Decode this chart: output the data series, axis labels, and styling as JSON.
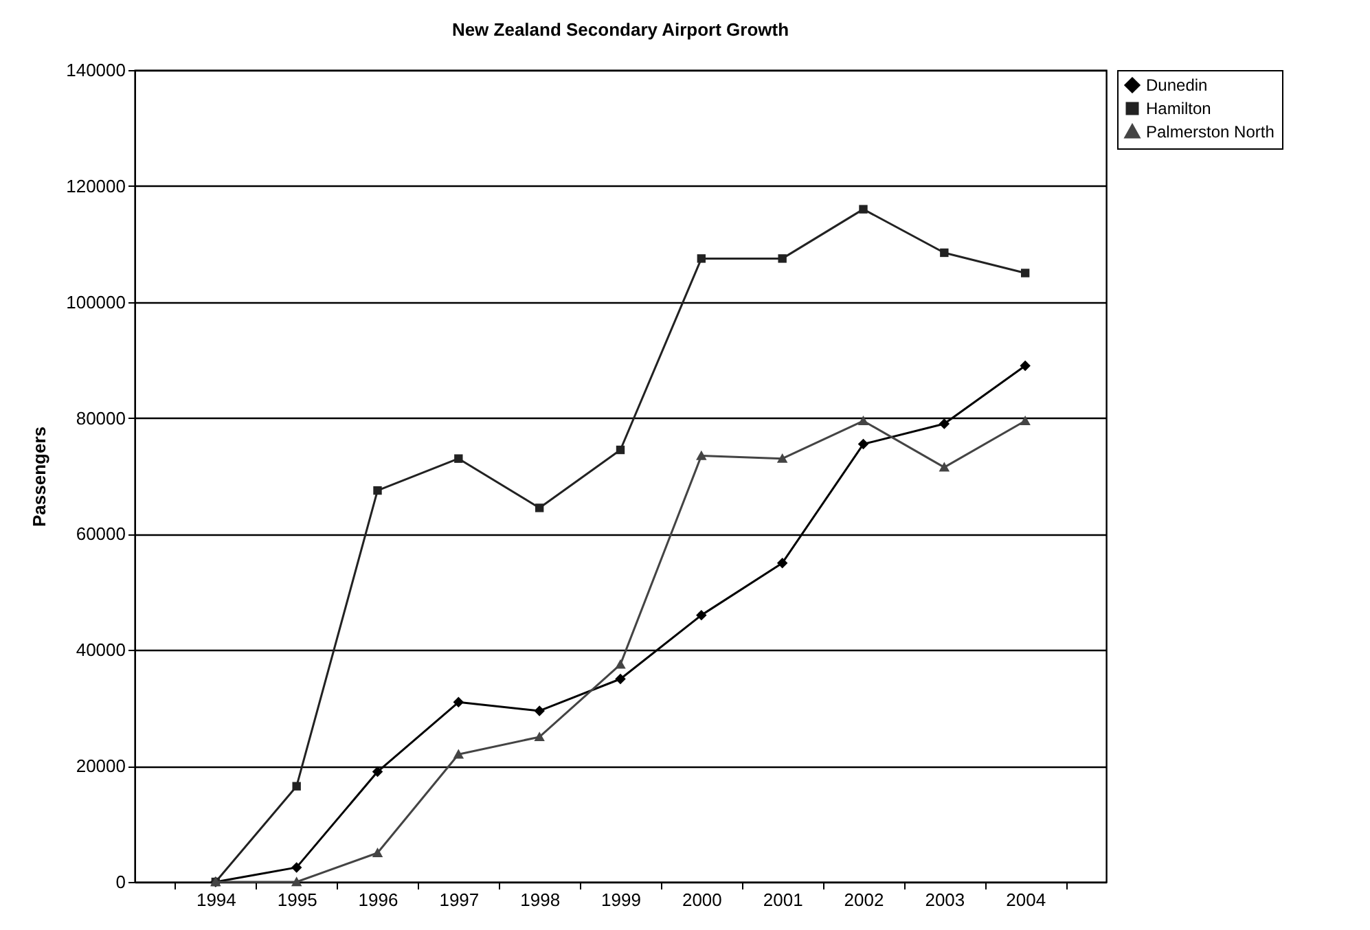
{
  "chart_data": {
    "type": "line",
    "title": "New Zealand Secondary Airport Growth",
    "ylabel": "Passengers",
    "categories": [
      "1994",
      "1995",
      "1996",
      "1997",
      "1998",
      "1999",
      "2000",
      "2001",
      "2002",
      "2003",
      "2004"
    ],
    "series": [
      {
        "name": "Dunedin",
        "color": "#000000",
        "marker": "diamond",
        "values": [
          0,
          2500,
          19000,
          31000,
          29500,
          35000,
          46000,
          55000,
          75500,
          79000,
          89000
        ]
      },
      {
        "name": "Hamilton",
        "color": "#222222",
        "marker": "square",
        "values": [
          0,
          16500,
          67500,
          73000,
          64500,
          74500,
          107500,
          107500,
          116000,
          108500,
          105000
        ]
      },
      {
        "name": "Palmerston North",
        "color": "#444444",
        "marker": "triangle",
        "values": [
          0,
          0,
          5000,
          22000,
          25000,
          37500,
          73500,
          73000,
          79500,
          71500,
          79500
        ]
      }
    ],
    "ylim": [
      0,
      140000
    ],
    "yticks": [
      0,
      20000,
      40000,
      60000,
      80000,
      100000,
      120000,
      140000
    ],
    "grid": "y",
    "legend": "right",
    "line_style": "solid"
  }
}
